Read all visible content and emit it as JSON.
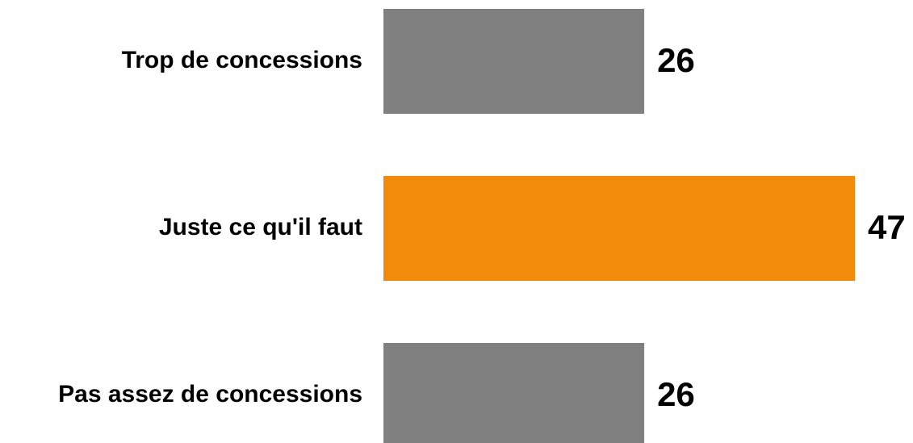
{
  "chart_data": {
    "type": "bar",
    "orientation": "horizontal",
    "categories": [
      "Trop de concessions",
      "Juste ce qu'il faut",
      "Pas assez de concessions"
    ],
    "values": [
      26,
      47,
      26
    ],
    "colors": [
      "#808080",
      "#f28a0c",
      "#808080"
    ],
    "xlim": [
      0,
      47
    ],
    "grid": false,
    "legend": "none"
  }
}
